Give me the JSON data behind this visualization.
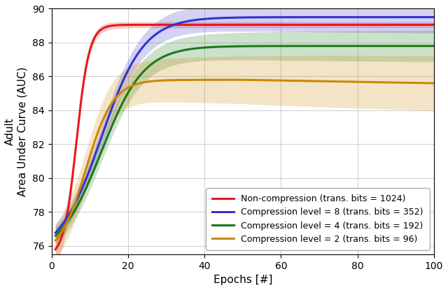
{
  "title": "",
  "xlabel": "Epochs [#]",
  "ylabel": "Adult\nArea Under Curve (AUC)",
  "xlim": [
    1,
    100
  ],
  "ylim": [
    75.5,
    90
  ],
  "yticks": [
    76,
    78,
    80,
    82,
    84,
    86,
    88,
    90
  ],
  "xticks": [
    0,
    20,
    40,
    60,
    80,
    100
  ],
  "lines": [
    {
      "label": "Non-compression (trans. bits = 1024)",
      "color": "#e8191a",
      "k": 0.55,
      "x0": 6.5,
      "start": 75.3,
      "end": 89.0,
      "std_early": 0.8,
      "std_late": 0.15,
      "std_decay": 0.18
    },
    {
      "label": "Compression level = 8 (trans. bits = 352)",
      "color": "#3333cc",
      "k": 0.22,
      "x0": 11,
      "start": 75.3,
      "end": 88.5,
      "std_early": 1.2,
      "std_late": 1.0,
      "std_decay": 0.03
    },
    {
      "label": "Compression level = 4 (trans. bits = 192)",
      "color": "#1a7a1a",
      "k": 0.22,
      "x0": 11,
      "start": 75.3,
      "end": 87.0,
      "std_early": 1.2,
      "std_late": 1.0,
      "std_decay": 0.03
    },
    {
      "label": "Compression level = 2 (trans. bits = 96)",
      "color": "#cc8800",
      "k": 0.3,
      "x0": 8,
      "start": 75.3,
      "end": 85.5,
      "std_early": 1.5,
      "std_late": 1.8,
      "std_decay": 0.01
    }
  ],
  "legend_loc": "lower right",
  "grid": true,
  "figsize": [
    6.4,
    4.15
  ],
  "dpi": 100
}
